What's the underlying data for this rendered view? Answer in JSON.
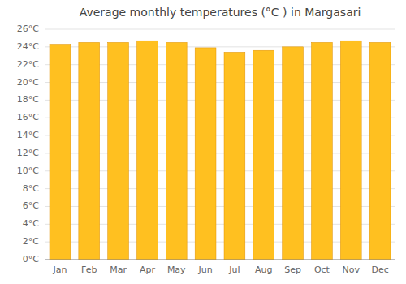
{
  "chart_data": {
    "type": "bar",
    "title": "Average monthly temperatures (°C ) in Margasari",
    "categories": [
      "Jan",
      "Feb",
      "Mar",
      "Apr",
      "May",
      "Jun",
      "Jul",
      "Aug",
      "Sep",
      "Oct",
      "Nov",
      "Dec"
    ],
    "values": [
      24.3,
      24.5,
      24.5,
      24.7,
      24.5,
      23.9,
      23.4,
      23.6,
      24.0,
      24.5,
      24.7,
      24.5
    ],
    "color": "#FFC020",
    "ylim": [
      0,
      26
    ],
    "yticks": [
      {
        "value": 0,
        "label": "0°C"
      },
      {
        "value": 2,
        "label": "2°C"
      },
      {
        "value": 4,
        "label": "4°C"
      },
      {
        "value": 6,
        "label": "6°C"
      },
      {
        "value": 8,
        "label": "8°C"
      },
      {
        "value": 10,
        "label": "10°C"
      },
      {
        "value": 12,
        "label": "12°C"
      },
      {
        "value": 14,
        "label": "14°C"
      },
      {
        "value": 16,
        "label": "16°C"
      },
      {
        "value": 18,
        "label": "18°C"
      },
      {
        "value": 20,
        "label": "20°C"
      },
      {
        "value": 22,
        "label": "22°C"
      },
      {
        "value": 24,
        "label": "24°C"
      },
      {
        "value": 26,
        "label": "26°C"
      }
    ],
    "grid": true
  }
}
